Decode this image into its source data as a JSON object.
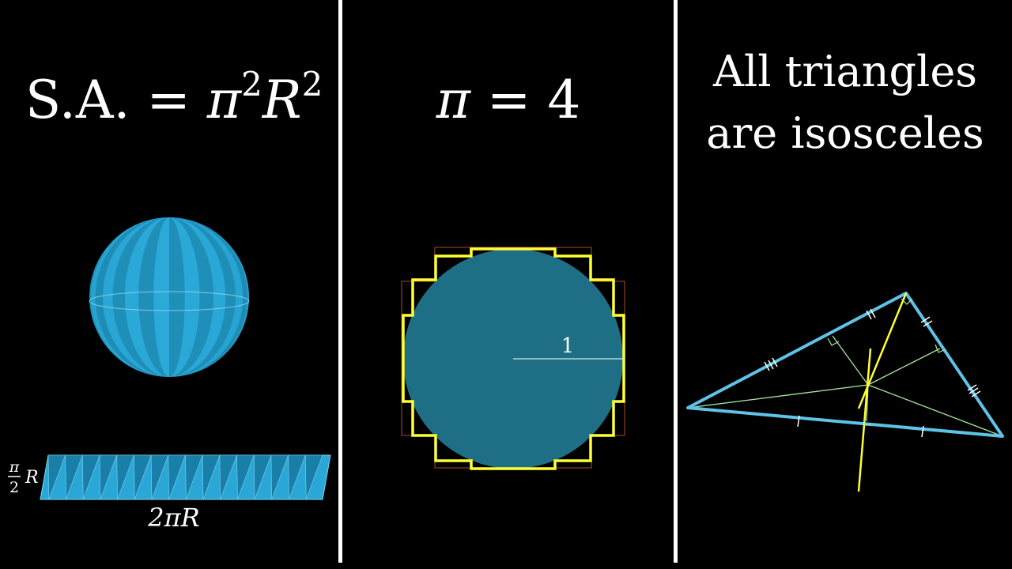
{
  "panel_1": {
    "formula": {
      "lhs": "S.A.",
      "eq": "=",
      "pi": "π",
      "pi_exp": "2",
      "r": "R",
      "r_exp": "2"
    },
    "strip": {
      "height_label": {
        "num": "π",
        "den": "2",
        "var": "R"
      },
      "width_label": "2πR",
      "segments": 16
    },
    "sphere": {
      "stripes": 16
    }
  },
  "panel_2": {
    "formula": {
      "pi": "π",
      "eq": "=",
      "value": "4"
    },
    "circle_radius_label": "1"
  },
  "panel_3": {
    "statement_line_1": "All triangles",
    "statement_line_2": "are isosceles"
  },
  "colors": {
    "background": "#000000",
    "sphere_blue": "#29abe2",
    "circle_teal": "#1e6f85",
    "yellow": "#ffff33",
    "triangle_blue": "#5ec3e6",
    "construction_green": "#a8e6a0",
    "thin_red": "#b04a2a"
  }
}
